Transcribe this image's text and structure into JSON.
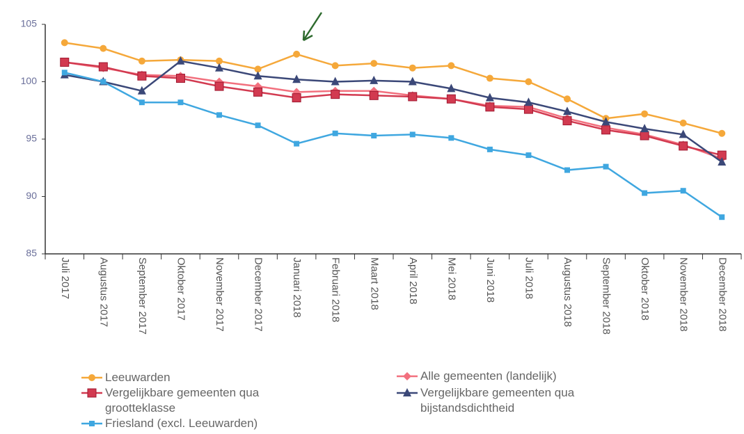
{
  "chart_data": {
    "type": "line",
    "categories": [
      "Juli 2017",
      "Augustus 2017",
      "September 2017",
      "Oktober 2017",
      "November 2017",
      "December 2017",
      "Januari 2018",
      "Februari 2018",
      "Maart 2018",
      "April 2018",
      "Mei 2018",
      "Juni 2018",
      "Juli 2018",
      "Augustus 2018",
      "September 2018",
      "Oktober 2018",
      "November 2018",
      "December 2018"
    ],
    "series": [
      {
        "name": "Leeuwarden",
        "color": "#f5a83a",
        "marker": "circle",
        "values": [
          103.4,
          102.9,
          101.8,
          101.9,
          101.8,
          101.1,
          102.4,
          101.4,
          101.6,
          101.2,
          101.4,
          100.3,
          100.0,
          98.5,
          96.8,
          97.2,
          96.4,
          95.5
        ]
      },
      {
        "name": "Alle gemeenten (landelijk)",
        "color": "#f2707e",
        "marker": "diamond",
        "values": [
          101.7,
          101.2,
          100.6,
          100.5,
          100.0,
          99.6,
          99.1,
          99.2,
          99.2,
          98.8,
          98.5,
          97.9,
          97.8,
          96.8,
          96.0,
          95.4,
          94.5,
          93.3
        ]
      },
      {
        "name": "Vergelijkbare gemeenten qua grootteklasse",
        "color": "#d23a50",
        "marker": "square",
        "values": [
          101.7,
          101.3,
          100.5,
          100.3,
          99.6,
          99.1,
          98.6,
          98.9,
          98.8,
          98.7,
          98.5,
          97.8,
          97.6,
          96.6,
          95.8,
          95.3,
          94.4,
          93.6
        ]
      },
      {
        "name": "Vergelijkbare gemeenten qua bijstandsdichtheid",
        "color": "#3b4878",
        "marker": "triangle",
        "values": [
          100.6,
          100.0,
          99.2,
          101.8,
          101.2,
          100.5,
          100.2,
          100.0,
          100.1,
          100.0,
          99.4,
          98.6,
          98.2,
          97.4,
          96.5,
          95.9,
          95.4,
          93.0
        ]
      },
      {
        "name": "Friesland (excl. Leeuwarden)",
        "color": "#3fa7e0",
        "marker": "smallsquare",
        "values": [
          100.8,
          100.0,
          98.2,
          98.2,
          97.1,
          96.2,
          94.6,
          95.5,
          95.3,
          95.4,
          95.1,
          94.1,
          93.6,
          92.3,
          92.6,
          90.3,
          90.5,
          88.2
        ]
      }
    ],
    "ylim": [
      85,
      105
    ],
    "yticks": [
      85,
      90,
      95,
      100,
      105
    ],
    "grid": false
  }
}
